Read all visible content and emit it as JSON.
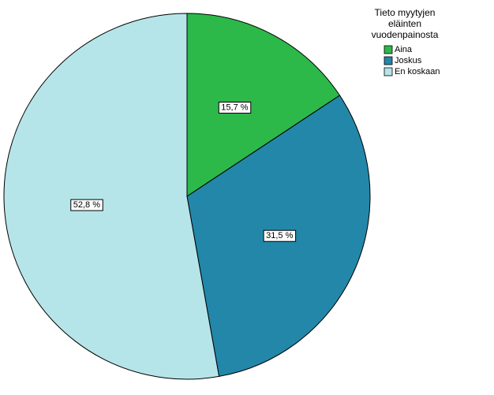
{
  "chart_data": {
    "type": "pie",
    "legend_title": [
      "Tieto myytyjen",
      "eläinten",
      "vuodenpainosta"
    ],
    "categories": [
      "Aina",
      "Joskus",
      "En koskaan"
    ],
    "values": [
      15.7,
      31.5,
      52.8
    ],
    "value_labels": [
      "15,7 %",
      "31,5 %",
      "52,8 %"
    ],
    "colors": [
      "#2db84a",
      "#2387a9",
      "#b5e5e8"
    ],
    "legend": "top-right"
  }
}
